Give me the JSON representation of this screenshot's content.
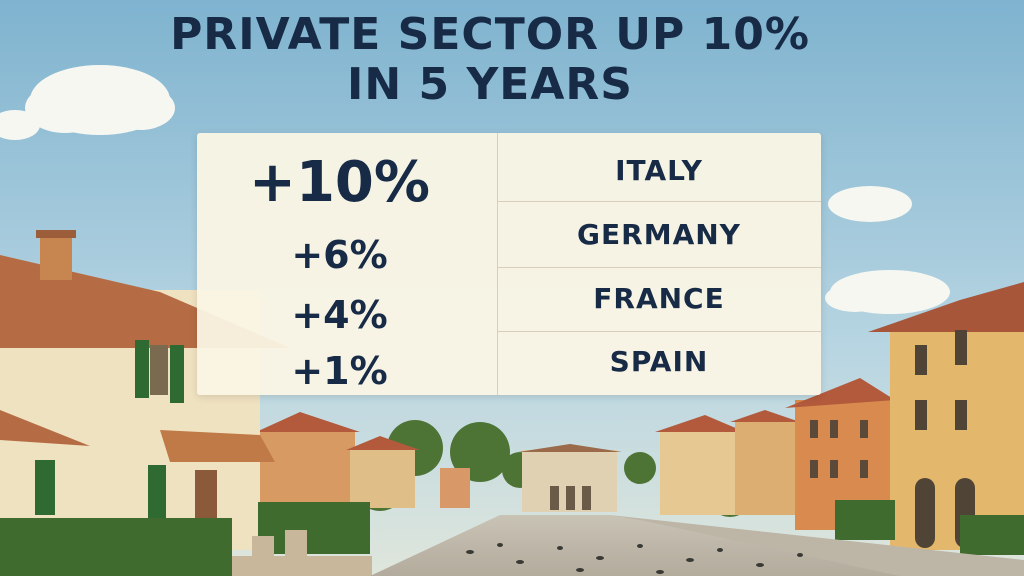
{
  "headline": {
    "line1": "PRIVATE SECTOR UP 10%",
    "line2": "IN 5 YEARS"
  },
  "rows": [
    {
      "percent": "+10%",
      "country": "ITALY"
    },
    {
      "percent": "+6%",
      "country": "GERMANY"
    },
    {
      "percent": "+4%",
      "country": "FRANCE"
    },
    {
      "percent": "+1%",
      "country": "SPAIN"
    }
  ],
  "colors": {
    "text": "#172a46",
    "panel": "#fbf5e4",
    "sky": "#a9cde0"
  }
}
